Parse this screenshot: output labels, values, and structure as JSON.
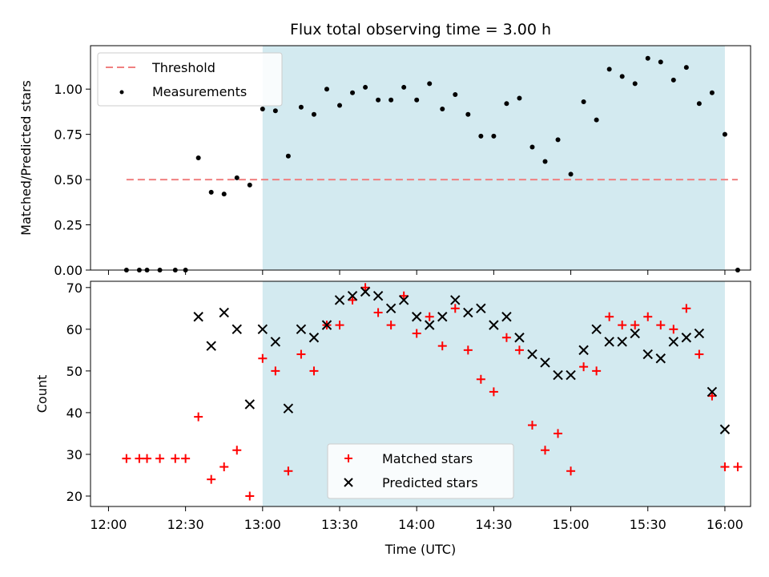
{
  "title": "Flux total observing time = 3.00 h",
  "chart_data": [
    {
      "type": "scatter",
      "ylabel": "Matched/Predicted stars",
      "xlim": [
        "11:53",
        "16:10"
      ],
      "ylim": [
        0,
        1.24
      ],
      "yticks": [
        0.0,
        0.25,
        0.5,
        0.75,
        1.0
      ],
      "ytick_labels": [
        "0.00",
        "0.25",
        "0.50",
        "0.75",
        "1.00"
      ],
      "shaded_region": {
        "x": [
          "13:00",
          "16:00"
        ],
        "color": "#d3eaf0"
      },
      "legend": {
        "placement": "top-left",
        "entries": [
          {
            "label": "Threshold",
            "key": "threshold"
          },
          {
            "label": "Measurements",
            "key": "measurements"
          }
        ]
      },
      "threshold": {
        "name": "Threshold",
        "y": 0.5,
        "x": [
          "12:07",
          "16:05"
        ],
        "color": "#f08080"
      },
      "series": [
        {
          "name": "Measurements",
          "color": "#000000",
          "points": [
            [
              "12:07",
              0.0
            ],
            [
              "12:12",
              0.0
            ],
            [
              "12:15",
              0.0
            ],
            [
              "12:20",
              0.0
            ],
            [
              "12:26",
              0.0
            ],
            [
              "12:30",
              0.0
            ],
            [
              "12:35",
              0.62
            ],
            [
              "12:40",
              0.43
            ],
            [
              "12:45",
              0.42
            ],
            [
              "12:50",
              0.51
            ],
            [
              "12:55",
              0.47
            ],
            [
              "13:00",
              0.89
            ],
            [
              "13:05",
              0.88
            ],
            [
              "13:10",
              0.63
            ],
            [
              "13:15",
              0.9
            ],
            [
              "13:20",
              0.86
            ],
            [
              "13:25",
              1.0
            ],
            [
              "13:30",
              0.91
            ],
            [
              "13:35",
              0.98
            ],
            [
              "13:40",
              1.01
            ],
            [
              "13:45",
              0.94
            ],
            [
              "13:50",
              0.94
            ],
            [
              "13:55",
              1.01
            ],
            [
              "14:00",
              0.94
            ],
            [
              "14:05",
              1.03
            ],
            [
              "14:10",
              0.89
            ],
            [
              "14:15",
              0.97
            ],
            [
              "14:20",
              0.86
            ],
            [
              "14:25",
              0.74
            ],
            [
              "14:30",
              0.74
            ],
            [
              "14:35",
              0.92
            ],
            [
              "14:40",
              0.95
            ],
            [
              "14:45",
              0.68
            ],
            [
              "14:50",
              0.6
            ],
            [
              "14:55",
              0.72
            ],
            [
              "15:00",
              0.53
            ],
            [
              "15:05",
              0.93
            ],
            [
              "15:10",
              0.83
            ],
            [
              "15:15",
              1.11
            ],
            [
              "15:20",
              1.07
            ],
            [
              "15:25",
              1.03
            ],
            [
              "15:30",
              1.17
            ],
            [
              "15:35",
              1.15
            ],
            [
              "15:40",
              1.05
            ],
            [
              "15:45",
              1.12
            ],
            [
              "15:50",
              0.92
            ],
            [
              "15:55",
              0.98
            ],
            [
              "16:00",
              0.75
            ],
            [
              "16:05",
              0.0
            ]
          ]
        }
      ]
    },
    {
      "type": "scatter",
      "xlabel": "Time (UTC)",
      "ylabel": "Count",
      "xlim": [
        "11:53",
        "16:10"
      ],
      "ylim": [
        17.5,
        71.5
      ],
      "yticks": [
        20,
        30,
        40,
        50,
        60,
        70
      ],
      "xticks": [
        "12:00",
        "12:30",
        "13:00",
        "13:30",
        "14:00",
        "14:30",
        "15:00",
        "15:30",
        "16:00"
      ],
      "shaded_region": {
        "x": [
          "13:00",
          "16:00"
        ],
        "color": "#d3eaf0"
      },
      "legend": {
        "placement": "bottom-center",
        "entries": [
          {
            "label": "Matched stars",
            "key": "matched"
          },
          {
            "label": "Predicted stars",
            "key": "predicted"
          }
        ]
      },
      "series": [
        {
          "name": "Matched stars",
          "color": "#ff0000",
          "marker": "+",
          "points": [
            [
              "12:07",
              29
            ],
            [
              "12:12",
              29
            ],
            [
              "12:15",
              29
            ],
            [
              "12:20",
              29
            ],
            [
              "12:26",
              29
            ],
            [
              "12:30",
              29
            ],
            [
              "12:35",
              39
            ],
            [
              "12:40",
              24
            ],
            [
              "12:45",
              27
            ],
            [
              "12:50",
              31
            ],
            [
              "12:55",
              20
            ],
            [
              "13:00",
              53
            ],
            [
              "13:05",
              50
            ],
            [
              "13:10",
              26
            ],
            [
              "13:15",
              54
            ],
            [
              "13:20",
              50
            ],
            [
              "13:25",
              61
            ],
            [
              "13:30",
              61
            ],
            [
              "13:35",
              67
            ],
            [
              "13:40",
              70
            ],
            [
              "13:45",
              64
            ],
            [
              "13:50",
              61
            ],
            [
              "13:55",
              68
            ],
            [
              "14:00",
              59
            ],
            [
              "14:05",
              63
            ],
            [
              "14:10",
              56
            ],
            [
              "14:15",
              65
            ],
            [
              "14:20",
              55
            ],
            [
              "14:25",
              48
            ],
            [
              "14:30",
              45
            ],
            [
              "14:35",
              58
            ],
            [
              "14:40",
              55
            ],
            [
              "14:45",
              37
            ],
            [
              "14:50",
              31
            ],
            [
              "14:55",
              35
            ],
            [
              "15:00",
              26
            ],
            [
              "15:05",
              51
            ],
            [
              "15:10",
              50
            ],
            [
              "15:15",
              63
            ],
            [
              "15:20",
              61
            ],
            [
              "15:25",
              61
            ],
            [
              "15:30",
              63
            ],
            [
              "15:35",
              61
            ],
            [
              "15:40",
              60
            ],
            [
              "15:45",
              65
            ],
            [
              "15:50",
              54
            ],
            [
              "15:55",
              44
            ],
            [
              "16:00",
              27
            ],
            [
              "16:05",
              27
            ]
          ]
        },
        {
          "name": "Predicted stars",
          "color": "#000000",
          "marker": "x",
          "points": [
            [
              "12:35",
              63
            ],
            [
              "12:40",
              56
            ],
            [
              "12:45",
              64
            ],
            [
              "12:50",
              60
            ],
            [
              "12:55",
              42
            ],
            [
              "13:00",
              60
            ],
            [
              "13:05",
              57
            ],
            [
              "13:10",
              41
            ],
            [
              "13:15",
              60
            ],
            [
              "13:20",
              58
            ],
            [
              "13:25",
              61
            ],
            [
              "13:30",
              67
            ],
            [
              "13:35",
              68
            ],
            [
              "13:40",
              69
            ],
            [
              "13:45",
              68
            ],
            [
              "13:50",
              65
            ],
            [
              "13:55",
              67
            ],
            [
              "14:00",
              63
            ],
            [
              "14:05",
              61
            ],
            [
              "14:10",
              63
            ],
            [
              "14:15",
              67
            ],
            [
              "14:20",
              64
            ],
            [
              "14:25",
              65
            ],
            [
              "14:30",
              61
            ],
            [
              "14:35",
              63
            ],
            [
              "14:40",
              58
            ],
            [
              "14:45",
              54
            ],
            [
              "14:50",
              52
            ],
            [
              "14:55",
              49
            ],
            [
              "15:00",
              49
            ],
            [
              "15:05",
              55
            ],
            [
              "15:10",
              60
            ],
            [
              "15:15",
              57
            ],
            [
              "15:20",
              57
            ],
            [
              "15:25",
              59
            ],
            [
              "15:30",
              54
            ],
            [
              "15:35",
              53
            ],
            [
              "15:40",
              57
            ],
            [
              "15:45",
              58
            ],
            [
              "15:50",
              59
            ],
            [
              "15:55",
              45
            ],
            [
              "16:00",
              36
            ]
          ]
        }
      ]
    }
  ]
}
